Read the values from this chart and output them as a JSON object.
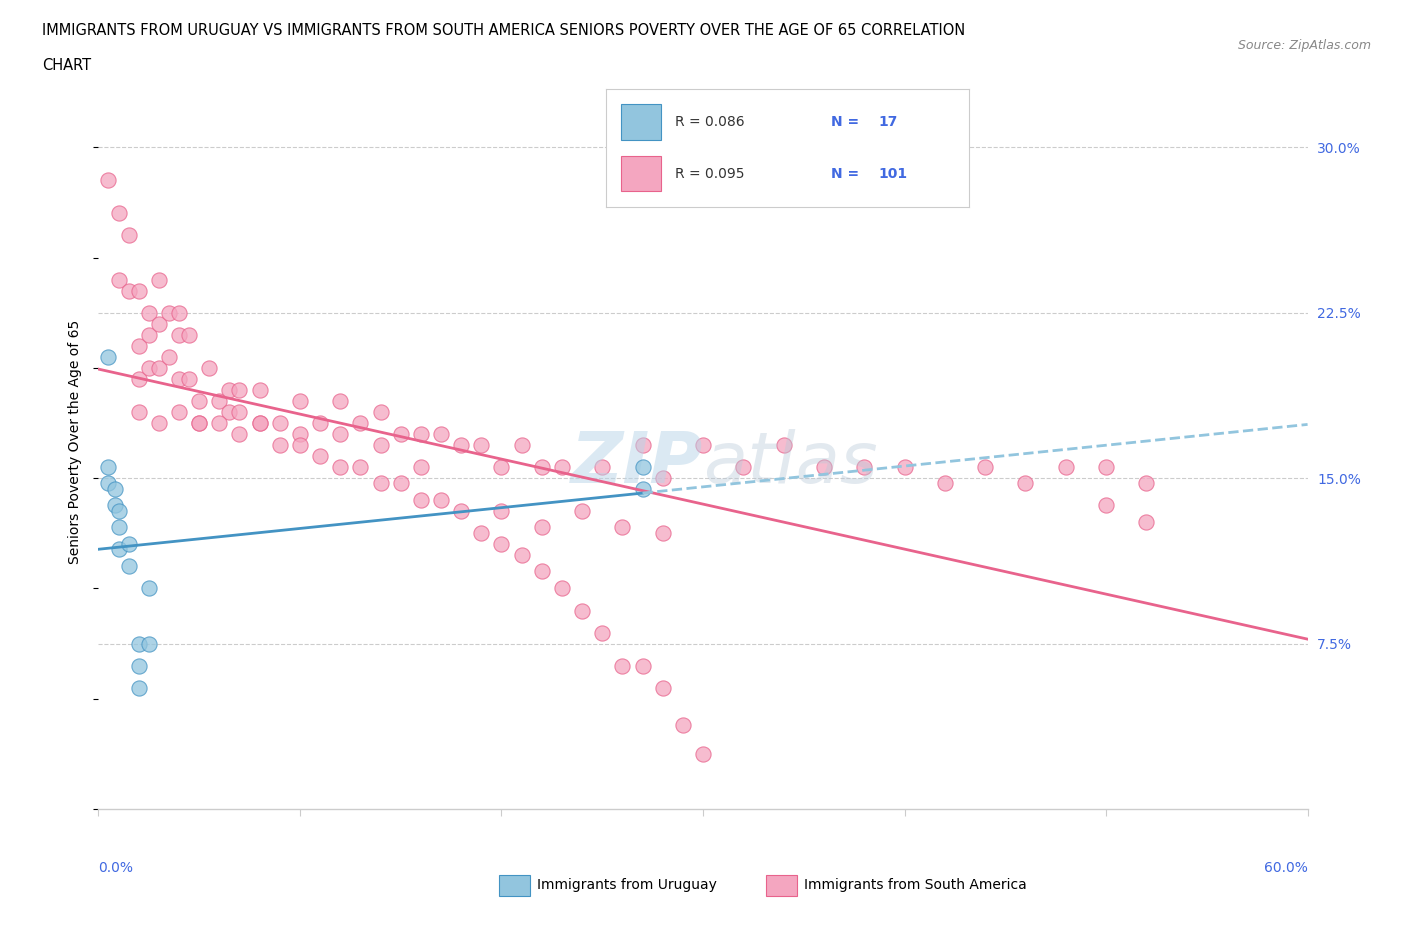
{
  "title_line1": "IMMIGRANTS FROM URUGUAY VS IMMIGRANTS FROM SOUTH AMERICA SENIORS POVERTY OVER THE AGE OF 65 CORRELATION",
  "title_line2": "CHART",
  "source": "Source: ZipAtlas.com",
  "ylabel": "Seniors Poverty Over the Age of 65",
  "xlim": [
    0,
    0.6
  ],
  "ylim": [
    0,
    0.333
  ],
  "right_yticks": [
    0.0,
    0.075,
    0.15,
    0.225,
    0.3
  ],
  "right_yticklabels": [
    "",
    "7.5%",
    "15.0%",
    "22.5%",
    "30.0%"
  ],
  "uruguay_color": "#92c5de",
  "uruguay_edge": "#4393c3",
  "southamerica_color": "#f4a6c0",
  "southamerica_edge": "#e8638c",
  "legend_r_uruguay": "R = 0.086",
  "legend_n_uruguay": "N =  17",
  "legend_r_south": "R = 0.095",
  "legend_n_south": "N = 101",
  "watermark": "ZIPatlas",
  "uruguay_x": [
    0.005,
    0.005,
    0.005,
    0.008,
    0.008,
    0.01,
    0.01,
    0.01,
    0.015,
    0.015,
    0.02,
    0.02,
    0.02,
    0.025,
    0.025,
    0.27,
    0.27
  ],
  "uruguay_y": [
    0.205,
    0.155,
    0.148,
    0.145,
    0.138,
    0.135,
    0.128,
    0.118,
    0.12,
    0.11,
    0.075,
    0.065,
    0.055,
    0.1,
    0.075,
    0.155,
    0.145
  ],
  "southamerica_x": [
    0.005,
    0.01,
    0.01,
    0.015,
    0.015,
    0.02,
    0.02,
    0.02,
    0.025,
    0.025,
    0.025,
    0.03,
    0.03,
    0.03,
    0.035,
    0.035,
    0.04,
    0.04,
    0.04,
    0.045,
    0.045,
    0.05,
    0.05,
    0.055,
    0.06,
    0.065,
    0.065,
    0.07,
    0.07,
    0.08,
    0.08,
    0.09,
    0.1,
    0.1,
    0.11,
    0.12,
    0.12,
    0.13,
    0.14,
    0.14,
    0.15,
    0.16,
    0.16,
    0.17,
    0.18,
    0.19,
    0.2,
    0.21,
    0.22,
    0.23,
    0.25,
    0.27,
    0.28,
    0.3,
    0.32,
    0.34,
    0.36,
    0.38,
    0.4,
    0.42,
    0.44,
    0.46,
    0.48,
    0.5,
    0.52,
    0.52,
    0.2,
    0.22,
    0.24,
    0.26,
    0.28,
    0.02,
    0.03,
    0.04,
    0.05,
    0.06,
    0.07,
    0.08,
    0.09,
    0.1,
    0.11,
    0.12,
    0.13,
    0.14,
    0.15,
    0.16,
    0.17,
    0.18,
    0.19,
    0.2,
    0.21,
    0.22,
    0.23,
    0.24,
    0.25,
    0.26,
    0.27,
    0.28,
    0.29,
    0.3,
    0.5
  ],
  "southamerica_y": [
    0.285,
    0.27,
    0.24,
    0.26,
    0.235,
    0.235,
    0.21,
    0.195,
    0.225,
    0.215,
    0.2,
    0.24,
    0.22,
    0.2,
    0.225,
    0.205,
    0.225,
    0.215,
    0.195,
    0.215,
    0.195,
    0.185,
    0.175,
    0.2,
    0.185,
    0.19,
    0.18,
    0.19,
    0.18,
    0.19,
    0.175,
    0.175,
    0.185,
    0.17,
    0.175,
    0.185,
    0.17,
    0.175,
    0.18,
    0.165,
    0.17,
    0.17,
    0.155,
    0.17,
    0.165,
    0.165,
    0.155,
    0.165,
    0.155,
    0.155,
    0.155,
    0.165,
    0.15,
    0.165,
    0.155,
    0.165,
    0.155,
    0.155,
    0.155,
    0.148,
    0.155,
    0.148,
    0.155,
    0.155,
    0.148,
    0.13,
    0.135,
    0.128,
    0.135,
    0.128,
    0.125,
    0.18,
    0.175,
    0.18,
    0.175,
    0.175,
    0.17,
    0.175,
    0.165,
    0.165,
    0.16,
    0.155,
    0.155,
    0.148,
    0.148,
    0.14,
    0.14,
    0.135,
    0.125,
    0.12,
    0.115,
    0.108,
    0.1,
    0.09,
    0.08,
    0.065,
    0.065,
    0.055,
    0.038,
    0.025,
    0.138
  ]
}
